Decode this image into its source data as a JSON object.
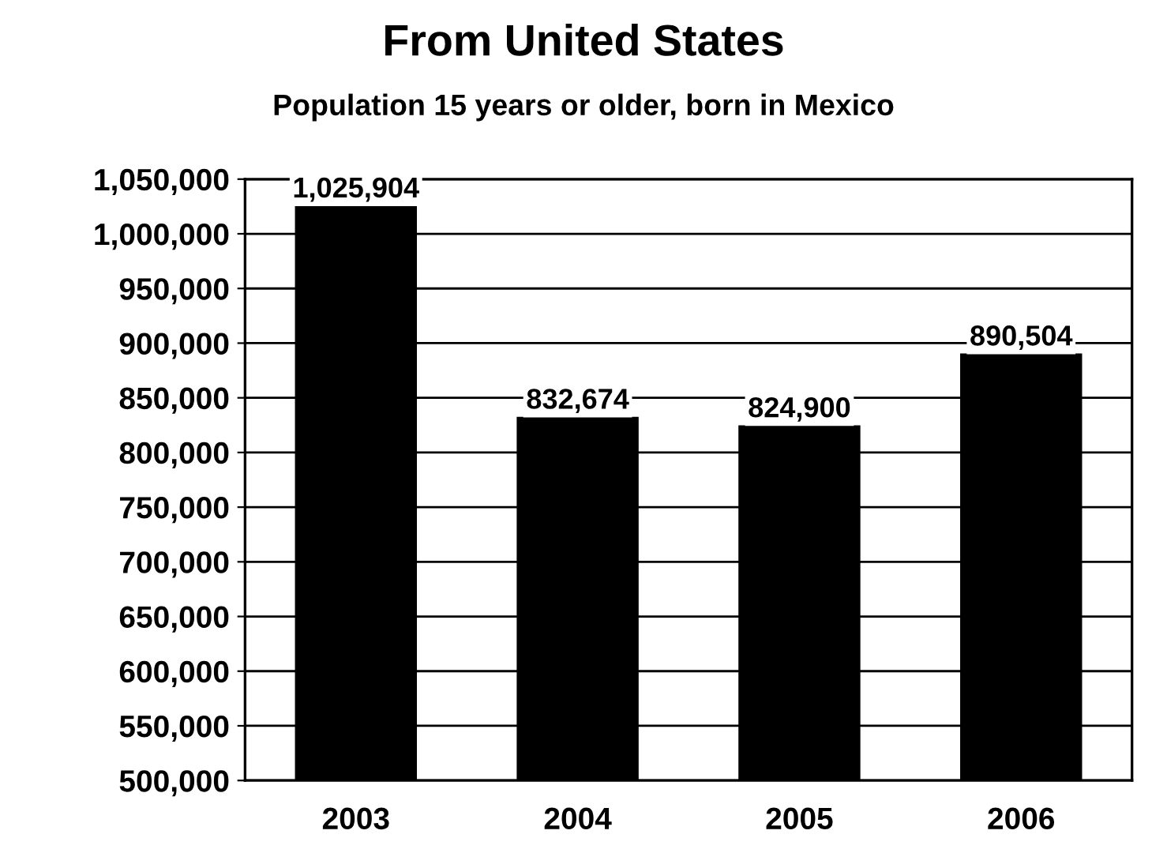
{
  "chart_data": {
    "type": "bar",
    "title": "From United States",
    "subtitle": "Population 15 years or older, born in Mexico",
    "categories": [
      "2003",
      "2004",
      "2005",
      "2006"
    ],
    "values": [
      1025904,
      832674,
      824900,
      890504
    ],
    "value_labels": [
      "1,025,904",
      "832,674",
      "824,900",
      "890,504"
    ],
    "color": "#000000",
    "ylim": [
      500000,
      1050000
    ],
    "yticks": [
      {
        "value": 500000,
        "label": "500,000"
      },
      {
        "value": 550000,
        "label": "550,000"
      },
      {
        "value": 600000,
        "label": "600,000"
      },
      {
        "value": 650000,
        "label": "650,000"
      },
      {
        "value": 700000,
        "label": "700,000"
      },
      {
        "value": 750000,
        "label": "750,000"
      },
      {
        "value": 800000,
        "label": "800,000"
      },
      {
        "value": 850000,
        "label": "850,000"
      },
      {
        "value": 900000,
        "label": "900,000"
      },
      {
        "value": 950000,
        "label": "950,000"
      },
      {
        "value": 1000000,
        "label": "1,000,000"
      },
      {
        "value": 1050000,
        "label": "1,050,000"
      }
    ],
    "grid": "y"
  }
}
